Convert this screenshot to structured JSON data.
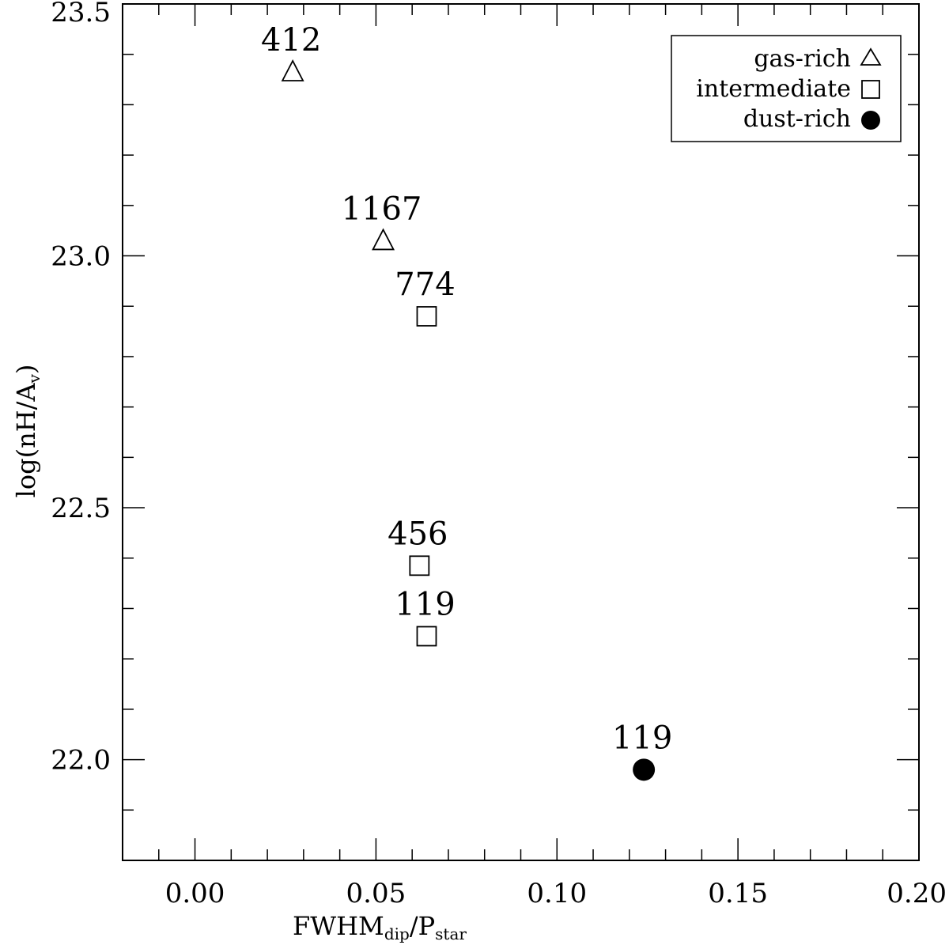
{
  "chart_data": {
    "type": "scatter",
    "title": "",
    "xlabel": {
      "main": "FWHM",
      "main_sub": "dip",
      "separator": "/P",
      "sep_sub": "star"
    },
    "ylabel": {
      "prefix": "log(nH/A",
      "sub": "v",
      "suffix": ")"
    },
    "xlim": [
      -0.02,
      0.2
    ],
    "ylim": [
      21.8,
      23.5
    ],
    "x_ticks": [
      {
        "value": 0.0,
        "label": "0.00"
      },
      {
        "value": 0.05,
        "label": "0.05"
      },
      {
        "value": 0.1,
        "label": "0.10"
      },
      {
        "value": 0.15,
        "label": "0.15"
      },
      {
        "value": 0.2,
        "label": "0.20"
      }
    ],
    "x_minor_step": 0.01,
    "y_ticks": [
      {
        "value": 22.0,
        "label": "22.0"
      },
      {
        "value": 22.5,
        "label": "22.5"
      },
      {
        "value": 23.0,
        "label": "23.0"
      },
      {
        "value": 23.5,
        "label": "23.5"
      }
    ],
    "y_minor_step": 0.1,
    "grid": false,
    "legend_position": "top-right",
    "series": [
      {
        "name": "gas-rich",
        "marker": "triangle",
        "points": [
          {
            "x": 0.027,
            "y": 23.365,
            "label": "412"
          },
          {
            "x": 0.052,
            "y": 23.03,
            "label": "1167"
          }
        ]
      },
      {
        "name": "intermediate",
        "marker": "square",
        "points": [
          {
            "x": 0.064,
            "y": 22.88,
            "label": "774"
          },
          {
            "x": 0.062,
            "y": 22.385,
            "label": "456"
          },
          {
            "x": 0.064,
            "y": 22.245,
            "label": "119"
          }
        ]
      },
      {
        "name": "dust-rich",
        "marker": "filled-circle",
        "points": [
          {
            "x": 0.124,
            "y": 21.98,
            "label": "119"
          }
        ]
      }
    ]
  }
}
